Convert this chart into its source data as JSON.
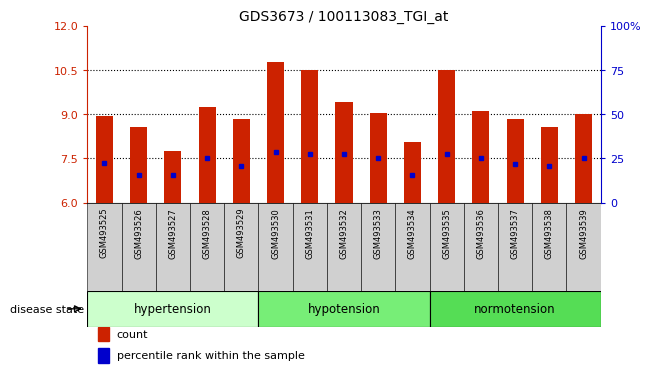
{
  "title": "GDS3673 / 100113083_TGI_at",
  "samples": [
    "GSM493525",
    "GSM493526",
    "GSM493527",
    "GSM493528",
    "GSM493529",
    "GSM493530",
    "GSM493531",
    "GSM493532",
    "GSM493533",
    "GSM493534",
    "GSM493535",
    "GSM493536",
    "GSM493537",
    "GSM493538",
    "GSM493539"
  ],
  "count_values": [
    8.95,
    8.55,
    7.75,
    9.25,
    8.85,
    10.75,
    10.5,
    9.4,
    9.05,
    8.05,
    10.5,
    9.1,
    8.85,
    8.55,
    9.0
  ],
  "percentile_values": [
    7.35,
    6.95,
    6.95,
    7.5,
    7.25,
    7.7,
    7.65,
    7.65,
    7.5,
    6.95,
    7.65,
    7.5,
    7.3,
    7.25,
    7.5
  ],
  "ylim_left": [
    6,
    12
  ],
  "ylim_right": [
    0,
    100
  ],
  "yticks_left": [
    6,
    7.5,
    9,
    10.5,
    12
  ],
  "yticks_right": [
    0,
    25,
    50,
    75,
    100
  ],
  "groups": [
    {
      "label": "hypertension",
      "start": 0,
      "end": 4
    },
    {
      "label": "hypotension",
      "start": 5,
      "end": 9
    },
    {
      "label": "normotension",
      "start": 10,
      "end": 14
    }
  ],
  "group_colors": [
    "#ccffcc",
    "#77ee77",
    "#55dd55"
  ],
  "bar_color": "#cc2200",
  "marker_color": "#0000cc",
  "bar_width": 0.5,
  "background_color": "#ffffff",
  "tick_label_color_left": "#cc2200",
  "tick_label_color_right": "#0000cc",
  "legend_count_label": "count",
  "legend_percentile_label": "percentile rank within the sample",
  "disease_state_label": "disease state"
}
